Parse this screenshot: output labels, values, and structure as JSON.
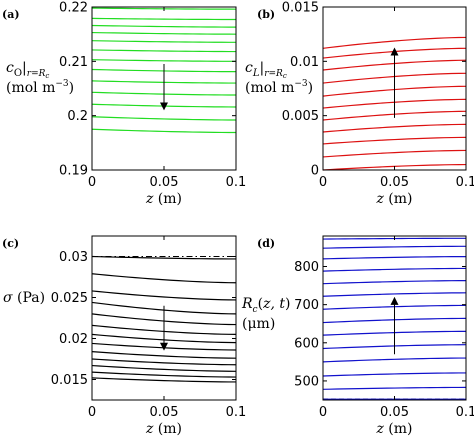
{
  "chart_data": [
    {
      "panel": "(a)",
      "type": "line",
      "color": "#22dd22",
      "xlabel_var": "z",
      "xlabel_unit": "(m)",
      "ylabel_line1": "c_O|_{r=R_c}",
      "ylabel_line2": "(mol m^-3)",
      "xlim": [
        0,
        0.1
      ],
      "ylim": [
        0.19,
        0.22
      ],
      "xticks": [
        "0",
        "0.05",
        "0.1"
      ],
      "yticks": [
        "0.19",
        "0.2",
        "0.21",
        "0.22"
      ],
      "ytick_values": [
        0.19,
        0.2,
        0.21,
        0.22
      ],
      "x": [
        0,
        0.1
      ],
      "series": [
        {
          "values": [
            0.2198,
            0.2196
          ]
        },
        {
          "values": [
            0.2179,
            0.2177
          ]
        },
        {
          "values": [
            0.2166,
            0.2163
          ]
        },
        {
          "values": [
            0.2153,
            0.215
          ]
        },
        {
          "values": [
            0.2138,
            0.2135
          ]
        },
        {
          "values": [
            0.2121,
            0.2118
          ]
        },
        {
          "values": [
            0.2103,
            0.21
          ]
        },
        {
          "values": [
            0.2085,
            0.2081
          ]
        },
        {
          "values": [
            0.2064,
            0.206
          ]
        },
        {
          "values": [
            0.2043,
            0.2038
          ]
        },
        {
          "values": [
            0.2021,
            0.2016
          ]
        },
        {
          "values": [
            0.1998,
            0.1992
          ]
        },
        {
          "values": [
            0.1975,
            0.1969
          ]
        }
      ],
      "arrow": {
        "direction": "down",
        "x": 0.05,
        "y_from": 0.2095,
        "y_to": 0.2017
      }
    },
    {
      "panel": "(b)",
      "type": "line",
      "color": "#dd1111",
      "xlabel_var": "z",
      "xlabel_unit": "(m)",
      "ylabel_line1": "c_L|_{r=R_c}",
      "ylabel_line2": "(mol m^-3)",
      "xlim": [
        0,
        0.1
      ],
      "ylim": [
        0,
        0.015
      ],
      "xticks": [
        "0",
        "0.05",
        "0.1"
      ],
      "yticks": [
        "0",
        "0.005",
        "0.01",
        "0.015"
      ],
      "ytick_values": [
        0,
        0.005,
        0.01,
        0.015
      ],
      "x": [
        0,
        0.1
      ],
      "series": [
        {
          "values": [
            0.0,
            0.0005
          ]
        },
        {
          "values": [
            0.0012,
            0.0018
          ]
        },
        {
          "values": [
            0.0024,
            0.003
          ]
        },
        {
          "values": [
            0.0035,
            0.0042
          ]
        },
        {
          "values": [
            0.0046,
            0.0054
          ]
        },
        {
          "values": [
            0.0057,
            0.0065
          ]
        },
        {
          "values": [
            0.0068,
            0.0077
          ]
        },
        {
          "values": [
            0.008,
            0.0089
          ]
        },
        {
          "values": [
            0.0092,
            0.0101
          ]
        },
        {
          "values": [
            0.0103,
            0.0112
          ]
        },
        {
          "values": [
            0.0112,
            0.0122
          ]
        }
      ],
      "arrow": {
        "direction": "up",
        "x": 0.05,
        "y_from": 0.0048,
        "y_to": 0.0109
      }
    },
    {
      "panel": "(c)",
      "type": "line",
      "color": "#000000",
      "xlabel_var": "z",
      "xlabel_unit": "(m)",
      "ylabel_line1": "σ (Pa)",
      "ylabel_line2": "",
      "xlim": [
        0,
        0.1
      ],
      "ylim": [
        0.0125,
        0.0325
      ],
      "xticks": [
        "0",
        "0.05",
        "0.1"
      ],
      "yticks": [
        "0.015",
        "0.02",
        "0.025",
        "0.03"
      ],
      "ytick_values": [
        0.015,
        0.02,
        0.025,
        0.03
      ],
      "x": [
        0,
        0.1
      ],
      "reference_line": {
        "value": 0.03,
        "style": "dash-dot"
      },
      "series": [
        {
          "values": [
            0.03,
            0.0297
          ]
        },
        {
          "values": [
            0.0279,
            0.0268
          ]
        },
        {
          "values": [
            0.0258,
            0.0247
          ]
        },
        {
          "values": [
            0.0244,
            0.023
          ]
        },
        {
          "values": [
            0.023,
            0.0217
          ]
        },
        {
          "values": [
            0.0216,
            0.0205
          ]
        },
        {
          "values": [
            0.0205,
            0.0195
          ]
        },
        {
          "values": [
            0.0194,
            0.0186
          ]
        },
        {
          "values": [
            0.0184,
            0.0176
          ]
        },
        {
          "values": [
            0.0175,
            0.0168
          ]
        },
        {
          "values": [
            0.0167,
            0.016
          ]
        },
        {
          "values": [
            0.0159,
            0.0153
          ]
        },
        {
          "values": [
            0.0152,
            0.0147
          ]
        }
      ],
      "arrow": {
        "direction": "down",
        "x": 0.05,
        "y_from": 0.024,
        "y_to": 0.019
      }
    },
    {
      "panel": "(d)",
      "type": "line",
      "color": "#1111cc",
      "xlabel_var": "z",
      "xlabel_unit": "(m)",
      "ylabel_line1": "R_c(z,t)",
      "ylabel_line2": "(μm)",
      "xlim": [
        0,
        0.1
      ],
      "ylim": [
        450,
        880
      ],
      "xticks": [
        "0",
        "0.05",
        "0.1"
      ],
      "yticks": [
        "500",
        "600",
        "700",
        "800"
      ],
      "ytick_values": [
        500,
        600,
        700,
        800
      ],
      "x": [
        0,
        0.1
      ],
      "reference_line": {
        "value": 452,
        "style": "dashed"
      },
      "series": [
        {
          "values": [
            452,
            452
          ]
        },
        {
          "values": [
            478,
            483
          ]
        },
        {
          "values": [
            513,
            521
          ]
        },
        {
          "values": [
            550,
            560
          ]
        },
        {
          "values": [
            585,
            595
          ]
        },
        {
          "values": [
            620,
            630
          ]
        },
        {
          "values": [
            653,
            664
          ]
        },
        {
          "values": [
            688,
            698
          ]
        },
        {
          "values": [
            722,
            731
          ]
        },
        {
          "values": [
            755,
            763
          ]
        },
        {
          "values": [
            788,
            795
          ]
        },
        {
          "values": [
            820,
            826
          ]
        },
        {
          "values": [
            848,
            853
          ]
        },
        {
          "values": [
            872,
            874
          ]
        }
      ],
      "arrow": {
        "direction": "up",
        "x": 0.05,
        "y_from": 570,
        "y_to": 710
      }
    }
  ]
}
